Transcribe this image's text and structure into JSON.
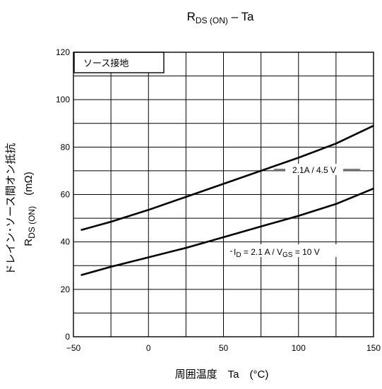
{
  "chart_data": {
    "type": "line",
    "title": {
      "main": "R",
      "sub": "DS (ON)",
      "rest": " – Ta"
    },
    "xlabel": "周囲温度　Ta　(°C)",
    "ylabel": {
      "line1": "ドレイン･ソース間オン抵抗",
      "line2_main": "R",
      "line2_sub": "DS (ON)",
      "line2_rest": "　(mΩ)"
    },
    "xlim": [
      -50,
      150
    ],
    "ylim": [
      0,
      120
    ],
    "x_ticks": [
      "−50",
      "0",
      "50",
      "100",
      "150"
    ],
    "x_tick_values": [
      -50,
      0,
      50,
      100,
      150
    ],
    "y_ticks": [
      "0",
      "20",
      "40",
      "60",
      "80",
      "100",
      "120"
    ],
    "y_tick_values": [
      0,
      20,
      40,
      60,
      80,
      100,
      120
    ],
    "x_minor_step": 25,
    "y_minor_step": 10,
    "grid": true,
    "box_label": "ソース接地",
    "series": [
      {
        "label": "2.1A / 4.5 V",
        "x": [
          -45,
          -25,
          0,
          25,
          50,
          75,
          100,
          125,
          150
        ],
        "y": [
          45,
          48.5,
          53.5,
          59,
          64.5,
          70,
          75.5,
          81.5,
          89
        ]
      },
      {
        "label_parts": [
          "I",
          "D",
          " = 2.1 A / V",
          "GS",
          " = 10 V"
        ],
        "x": [
          -45,
          -25,
          0,
          25,
          50,
          75,
          100,
          125,
          150
        ],
        "y": [
          26,
          29.5,
          33.5,
          37.5,
          42,
          46.5,
          51,
          56,
          62.5
        ]
      }
    ]
  }
}
